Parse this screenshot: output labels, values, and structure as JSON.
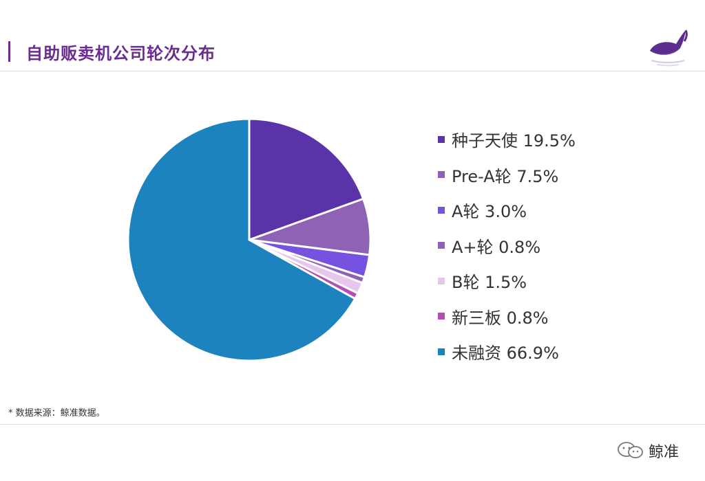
{
  "header": {
    "title": "自助贩卖机公司轮次分布",
    "accent_color": "#6a2c91",
    "logo_icon": "whale-logo-icon"
  },
  "chart_data": {
    "type": "pie",
    "categories": [
      "种子天使",
      "Pre-A轮",
      "A轮",
      "A+轮",
      "B轮",
      "新三板",
      "未融资"
    ],
    "values": [
      19.5,
      7.5,
      3.0,
      0.8,
      1.5,
      0.8,
      66.9
    ],
    "value_labels": [
      "19.5%",
      "7.5%",
      "3.0%",
      "0.8%",
      "1.5%",
      "0.8%",
      "66.9%"
    ],
    "colors": [
      "#5b33a8",
      "#8e63b5",
      "#7552e0",
      "#8e63b5",
      "#e6c6ea",
      "#b44db4",
      "#1c83bf"
    ],
    "legend_placement": "right",
    "start_angle": "12 o'clock, clockwise"
  },
  "footer": {
    "source_note": "* 数据来源：鲸准数据。",
    "brand_name": "鲸准",
    "wechat_icon": "wechat-icon"
  }
}
